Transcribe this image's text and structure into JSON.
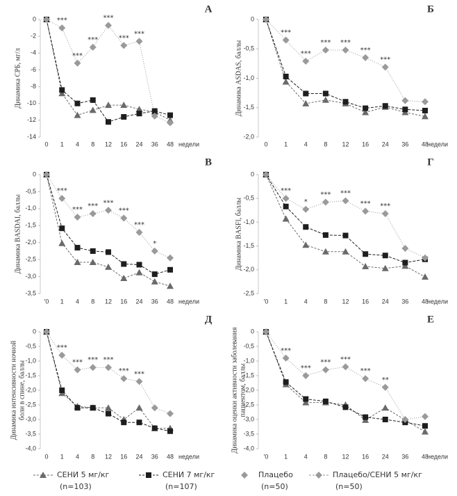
{
  "chart_data": [
    {
      "type": "line",
      "title": "А",
      "ylabel": [
        "Динамика СРБ, мг/л"
      ],
      "xlabel": "недели",
      "categories": [
        "0",
        "1",
        "4",
        "8",
        "12",
        "16",
        "24",
        "36",
        "48"
      ],
      "ylim": [
        -14,
        0
      ],
      "yticks": [
        0,
        -2,
        -4,
        -6,
        -8,
        -10,
        -12,
        -14
      ],
      "series": [
        {
          "marker": "triangle",
          "color": "#6a6a6a",
          "dash": "3 2",
          "values": [
            0,
            -8.8,
            -11.4,
            -10.8,
            -10.2,
            -10.2,
            -10.7,
            -11.0,
            -12.0
          ]
        },
        {
          "marker": "square",
          "color": "#1e1e1e",
          "dash": "4 2",
          "values": [
            0,
            -8.4,
            -10.0,
            -9.6,
            -12.2,
            -11.6,
            -11.2,
            -10.9,
            -11.4
          ]
        },
        {
          "marker": "diamond",
          "color": "#9a9a9a",
          "dash": "1 2",
          "values": [
            0,
            -1.0,
            -5.2,
            -3.3,
            -0.7,
            -3.1,
            -2.6,
            -11.5,
            -12.3
          ]
        }
      ],
      "annotations": [
        null,
        "***",
        "***",
        "***",
        "***",
        "***",
        "***",
        null,
        null
      ]
    },
    {
      "type": "line",
      "title": "Б",
      "ylabel": [
        "Динамика ASDAS, баллы"
      ],
      "xlabel": "недели",
      "categories": [
        "0",
        "1",
        "4",
        "8",
        "12",
        "16",
        "24",
        "36",
        "48"
      ],
      "ylim": [
        -2,
        0
      ],
      "yticks": [
        0,
        {
          "value": -0.5,
          "label": "-0,5"
        },
        {
          "value": -1,
          "label": "-1,0"
        },
        {
          "value": -1.5,
          "label": "-1,5"
        },
        {
          "value": -2,
          "label": "-2,0"
        }
      ],
      "series": [
        {
          "marker": "triangle",
          "color": "#6a6a6a",
          "dash": "3 2",
          "values": [
            0,
            -1.06,
            -1.43,
            -1.37,
            -1.43,
            -1.58,
            -1.49,
            -1.58,
            -1.65
          ]
        },
        {
          "marker": "square",
          "color": "#1e1e1e",
          "dash": "4 2",
          "values": [
            0,
            -0.97,
            -1.26,
            -1.26,
            -1.4,
            -1.51,
            -1.47,
            -1.53,
            -1.55
          ]
        },
        {
          "marker": "diamond",
          "color": "#9a9a9a",
          "dash": "1 2",
          "values": [
            0,
            -0.35,
            -0.71,
            -0.52,
            -0.52,
            -0.65,
            -0.81,
            -1.38,
            -1.4
          ]
        }
      ],
      "annotations": [
        null,
        "***",
        "***",
        "***",
        "***",
        "***",
        "***",
        null,
        null
      ]
    },
    {
      "type": "line",
      "title": "В",
      "ylabel": [
        "Динамика BASDAI, баллы"
      ],
      "xlabel": "недели",
      "categories": [
        "'0",
        "1",
        "4",
        "8",
        "12",
        "16",
        "24",
        "36",
        "48"
      ],
      "ylim": [
        -3.5,
        0
      ],
      "yticks": [
        0,
        {
          "value": -0.5,
          "label": "-0,5"
        },
        {
          "value": -1,
          "label": "-1,0"
        },
        {
          "value": -1.5,
          "label": "-1,5"
        },
        {
          "value": -2,
          "label": "-2,0"
        },
        {
          "value": -2.5,
          "label": "-2,5"
        },
        {
          "value": -3,
          "label": "-3,0"
        },
        {
          "value": -3.5,
          "label": "-3,5"
        }
      ],
      "series": [
        {
          "marker": "triangle",
          "color": "#6a6a6a",
          "dash": "3 2",
          "values": [
            0,
            -2.02,
            -2.58,
            -2.58,
            -2.72,
            -3.05,
            -2.88,
            -3.15,
            -3.28
          ]
        },
        {
          "marker": "square",
          "color": "#1e1e1e",
          "dash": "4 2",
          "values": [
            0,
            -1.58,
            -2.15,
            -2.25,
            -2.28,
            -2.63,
            -2.65,
            -2.93,
            -2.8
          ]
        },
        {
          "marker": "diamond",
          "color": "#9a9a9a",
          "dash": "1 2",
          "values": [
            0,
            -0.7,
            -1.25,
            -1.15,
            -1.05,
            -1.28,
            -1.7,
            -2.25,
            -2.45
          ]
        }
      ],
      "annotations": [
        null,
        "***",
        "***",
        "***",
        "***",
        "***",
        "***",
        "*",
        null
      ]
    },
    {
      "type": "line",
      "title": "Г",
      "ylabel": [
        "Динамика BASFI, баллы"
      ],
      "xlabel": "недели",
      "categories": [
        "'0",
        "1",
        "4",
        "8",
        "12",
        "16",
        "24",
        "36",
        "48"
      ],
      "ylim": [
        -2.5,
        0
      ],
      "yticks": [
        0,
        {
          "value": -0.5,
          "label": "-0,5"
        },
        {
          "value": -1,
          "label": "-1,0"
        },
        {
          "value": -1.5,
          "label": "-1,5"
        },
        {
          "value": -2,
          "label": "-2,0"
        },
        {
          "value": -2.5,
          "label": "-2,5"
        }
      ],
      "series": [
        {
          "marker": "triangle",
          "color": "#6a6a6a",
          "dash": "3 2",
          "values": [
            0,
            -0.93,
            -1.48,
            -1.62,
            -1.62,
            -1.93,
            -1.97,
            -1.92,
            -2.15
          ]
        },
        {
          "marker": "square",
          "color": "#1e1e1e",
          "dash": "4 2",
          "values": [
            0,
            -0.67,
            -1.1,
            -1.27,
            -1.28,
            -1.67,
            -1.7,
            -1.85,
            -1.78
          ]
        },
        {
          "marker": "diamond",
          "color": "#9a9a9a",
          "dash": "1 2",
          "values": [
            0,
            -0.5,
            -0.73,
            -0.58,
            -0.55,
            -0.77,
            -0.82,
            -1.55,
            -1.75
          ]
        }
      ],
      "annotations": [
        null,
        "***",
        "*",
        "***",
        "***",
        "***",
        "***",
        null,
        null
      ]
    },
    {
      "type": "line",
      "title": "Д",
      "ylabel": [
        "Динамика интенсивности ночной",
        "боли в спине, баллы"
      ],
      "xlabel": "недели",
      "categories": [
        "0",
        "1",
        "4",
        "8",
        "12",
        "16",
        "24",
        "36",
        "48"
      ],
      "ylim": [
        -4,
        0
      ],
      "yticks": [
        0,
        {
          "value": -0.5,
          "label": "-0,5"
        },
        {
          "value": -1,
          "label": "-1,0"
        },
        {
          "value": -1.5,
          "label": "-1,5"
        },
        {
          "value": -2,
          "label": "-2,0"
        },
        {
          "value": -2.5,
          "label": "-2,5"
        },
        {
          "value": -3,
          "label": "-3,0"
        },
        {
          "value": -3.5,
          "label": "-3,5"
        },
        {
          "value": -4,
          "label": "-4,0"
        }
      ],
      "series": [
        {
          "marker": "triangle",
          "color": "#6a6a6a",
          "dash": "3 2",
          "values": [
            0,
            -2.1,
            -2.55,
            -2.6,
            -2.6,
            -3.0,
            -2.6,
            -3.3,
            -3.3
          ]
        },
        {
          "marker": "square",
          "color": "#1e1e1e",
          "dash": "4 2",
          "values": [
            0,
            -2.0,
            -2.6,
            -2.6,
            -2.8,
            -3.1,
            -3.1,
            -3.3,
            -3.4
          ]
        },
        {
          "marker": "diamond",
          "color": "#9a9a9a",
          "dash": "1 2",
          "values": [
            0,
            -0.8,
            -1.3,
            -1.22,
            -1.22,
            -1.6,
            -1.7,
            -2.6,
            -2.8
          ]
        }
      ],
      "annotations": [
        null,
        "***",
        "***",
        "***",
        "***",
        "***",
        "***",
        null,
        null
      ]
    },
    {
      "type": "line",
      "title": "Е",
      "ylabel": [
        "Динамика оценки активности заболевания",
        "пациентом, баллы"
      ],
      "xlabel": "недели",
      "categories": [
        "'0",
        "1",
        "4",
        "8",
        "12",
        "16",
        "24",
        "36",
        "48"
      ],
      "ylim": [
        -4,
        0
      ],
      "yticks": [
        0,
        {
          "value": -0.5,
          "label": "-0,5"
        },
        {
          "value": -1,
          "label": "-1,0"
        },
        {
          "value": -1.5,
          "label": "-1,5"
        },
        {
          "value": -2,
          "label": "-2,0"
        },
        {
          "value": -2.5,
          "label": "-2,5"
        },
        {
          "value": -3,
          "label": "-3,0"
        },
        {
          "value": -3.5,
          "label": "-3,5"
        },
        {
          "value": -4,
          "label": "-4,0"
        }
      ],
      "series": [
        {
          "marker": "triangle",
          "color": "#6a6a6a",
          "dash": "3 2",
          "values": [
            0,
            -1.8,
            -2.42,
            -2.42,
            -2.5,
            -3.02,
            -2.6,
            -3.02,
            -3.42
          ]
        },
        {
          "marker": "square",
          "color": "#1e1e1e",
          "dash": "4 2",
          "values": [
            0,
            -1.72,
            -2.3,
            -2.38,
            -2.58,
            -2.92,
            -3.0,
            -3.1,
            -3.22
          ]
        },
        {
          "marker": "diamond",
          "color": "#9a9a9a",
          "dash": "1 2",
          "values": [
            0,
            -0.9,
            -1.5,
            -1.3,
            -1.2,
            -1.6,
            -1.9,
            -3.0,
            -2.9
          ]
        }
      ],
      "annotations": [
        null,
        "***",
        "***",
        "***",
        "***",
        "***",
        "**",
        null,
        null
      ]
    }
  ],
  "legend": [
    {
      "label": "СЕНИ 5 мг/кг",
      "n": "(n=103)",
      "marker": "triangle",
      "color": "#6a6a6a",
      "line": true
    },
    {
      "label": "СЕНИ 7 мг/кг",
      "n": "(n=107)",
      "marker": "square",
      "color": "#1e1e1e",
      "line": true
    },
    {
      "label": "Плацебо",
      "n": "(n=50)",
      "marker": "diamond",
      "color": "#9a9a9a",
      "line": false
    },
    {
      "label": "Плацебо/СЕНИ 5 мг/кг",
      "n": "(n=50)",
      "marker": "diamond",
      "color": "#9a9a9a",
      "line": true
    }
  ]
}
